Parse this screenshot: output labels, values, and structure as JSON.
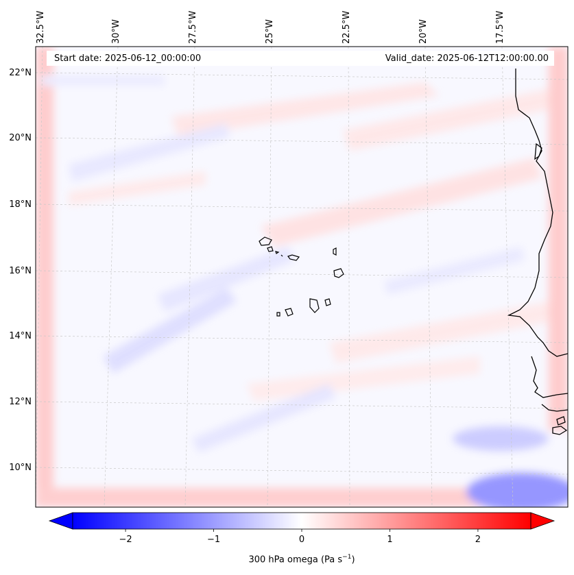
{
  "header": {
    "start_date": "Start date: 2025-06-12_00:00:00",
    "valid_date": "Valid_date: 2025-06-12T12:00:00.00"
  },
  "axes": {
    "lon_labels": [
      "32.5°W",
      "30°W",
      "27.5°W",
      "25°W",
      "22.5°W",
      "20°W",
      "17.5°W"
    ],
    "lat_labels": [
      "22°N",
      "20°N",
      "18°N",
      "16°N",
      "14°N",
      "12°N",
      "10°N"
    ]
  },
  "colorbar": {
    "ticks": [
      "−2",
      "−1",
      "0",
      "1",
      "2"
    ],
    "tick_values": [
      -2,
      -1,
      0,
      1,
      2
    ],
    "range": [
      -2.6,
      2.6
    ],
    "label": "300 hPa omega (Pa s",
    "label_sup": "−1",
    "label_close": ")",
    "colors": {
      "min": "#0000ff",
      "mid": "#ffffff",
      "max": "#ff0000"
    }
  },
  "map": {
    "field": "300 hPa omega",
    "coastline_color": "#000000",
    "gridline_color": "#c8c8c8"
  }
}
